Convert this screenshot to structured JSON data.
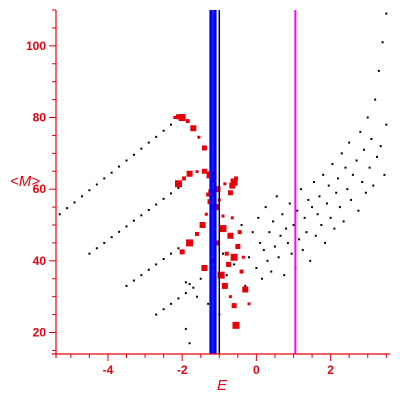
{
  "chart_data": {
    "type": "scatter",
    "xlabel": "E",
    "ylabel": "<M>",
    "xlim": [
      -5.4,
      3.6
    ],
    "ylim": [
      14,
      110
    ],
    "x_ticks": [
      -4,
      -2,
      0,
      2
    ],
    "y_ticks": [
      20,
      40,
      60,
      80,
      100
    ],
    "axis_color": "#e8000b",
    "series": [
      {
        "color": "#000000",
        "style": "dots",
        "points": [
          [
            -5.3,
            53
          ],
          [
            -5.1,
            54.7
          ],
          [
            -4.9,
            56.3
          ],
          [
            -4.7,
            58
          ],
          [
            -4.5,
            59.7
          ],
          [
            -4.3,
            61.3
          ],
          [
            -4.1,
            63
          ],
          [
            -3.9,
            64.6
          ],
          [
            -3.7,
            66.3
          ],
          [
            -3.5,
            68
          ],
          [
            -3.3,
            69.6
          ],
          [
            -3.1,
            71.3
          ],
          [
            -2.9,
            73
          ],
          [
            -2.7,
            74.6
          ],
          [
            -2.5,
            76.3
          ],
          [
            -2.3,
            78
          ],
          [
            -4.5,
            42
          ],
          [
            -4.3,
            43.5
          ],
          [
            -4.1,
            45
          ],
          [
            -3.9,
            46.6
          ],
          [
            -3.7,
            48.1
          ],
          [
            -3.5,
            49.6
          ],
          [
            -3.3,
            51.2
          ],
          [
            -3.1,
            52.7
          ],
          [
            -2.9,
            54.2
          ],
          [
            -2.7,
            55.7
          ],
          [
            -2.5,
            57.3
          ],
          [
            -2.3,
            58.8
          ],
          [
            -2.1,
            60.3
          ],
          [
            -3.5,
            33
          ],
          [
            -3.3,
            34.5
          ],
          [
            -3.1,
            36
          ],
          [
            -2.9,
            37.5
          ],
          [
            -2.7,
            39
          ],
          [
            -2.5,
            40.5
          ],
          [
            -2.3,
            42
          ],
          [
            -2.1,
            43.5
          ],
          [
            -2.7,
            25
          ],
          [
            -2.5,
            26.5
          ],
          [
            -2.3,
            28
          ],
          [
            -2.1,
            29.5
          ],
          [
            -1.9,
            31
          ],
          [
            -1.7,
            32.5
          ],
          [
            -1.9,
            34
          ],
          [
            -1.8,
            33.5
          ],
          [
            -1.6,
            30
          ],
          [
            -1.5,
            35
          ],
          [
            -1.3,
            28
          ],
          [
            -1.2,
            38
          ],
          [
            -1.0,
            25
          ],
          [
            -1.9,
            21
          ],
          [
            -1.8,
            17
          ],
          [
            -0.9,
            42
          ],
          [
            -0.8,
            36
          ],
          [
            -0.7,
            47
          ],
          [
            -0.6,
            39
          ],
          [
            -0.5,
            44
          ],
          [
            -0.4,
            50
          ],
          [
            -0.3,
            33
          ],
          [
            -0.2,
            41
          ],
          [
            -0.1,
            48
          ],
          [
            0.0,
            38
          ],
          [
            0.05,
            52
          ],
          [
            0.1,
            45
          ],
          [
            0.15,
            35
          ],
          [
            0.2,
            43
          ],
          [
            0.25,
            55
          ],
          [
            0.3,
            40
          ],
          [
            0.35,
            48
          ],
          [
            0.4,
            37
          ],
          [
            0.45,
            51
          ],
          [
            0.5,
            44
          ],
          [
            0.55,
            58
          ],
          [
            0.6,
            41
          ],
          [
            0.65,
            47
          ],
          [
            0.7,
            53
          ],
          [
            0.75,
            36
          ],
          [
            0.8,
            49
          ],
          [
            0.85,
            45
          ],
          [
            0.9,
            56
          ],
          [
            0.95,
            42
          ],
          [
            1.0,
            50
          ],
          [
            1.05,
            38
          ],
          [
            1.1,
            54
          ],
          [
            1.15,
            46
          ],
          [
            1.2,
            60
          ],
          [
            1.25,
            43
          ],
          [
            1.3,
            52
          ],
          [
            1.35,
            48
          ],
          [
            1.4,
            57
          ],
          [
            1.45,
            40
          ],
          [
            1.5,
            55
          ],
          [
            1.55,
            62
          ],
          [
            1.6,
            47
          ],
          [
            1.65,
            53
          ],
          [
            1.7,
            58
          ],
          [
            1.75,
            50
          ],
          [
            1.8,
            64
          ],
          [
            1.85,
            45
          ],
          [
            1.9,
            56
          ],
          [
            1.95,
            61
          ],
          [
            2.0,
            52
          ],
          [
            2.05,
            67
          ],
          [
            2.1,
            49
          ],
          [
            2.15,
            59
          ],
          [
            2.2,
            63
          ],
          [
            2.25,
            55
          ],
          [
            2.3,
            70
          ],
          [
            2.35,
            51
          ],
          [
            2.4,
            66
          ],
          [
            2.45,
            60
          ],
          [
            2.5,
            73
          ],
          [
            2.55,
            57
          ],
          [
            2.6,
            64
          ],
          [
            2.7,
            68
          ],
          [
            2.75,
            54
          ],
          [
            2.8,
            76
          ],
          [
            2.85,
            62
          ],
          [
            2.9,
            71
          ],
          [
            2.95,
            59
          ],
          [
            3.0,
            80
          ],
          [
            3.05,
            66
          ],
          [
            3.1,
            74
          ],
          [
            3.15,
            61
          ],
          [
            3.2,
            85
          ],
          [
            3.25,
            69
          ],
          [
            3.3,
            93
          ],
          [
            3.35,
            72
          ],
          [
            3.4,
            101
          ],
          [
            3.45,
            64
          ],
          [
            3.5,
            109
          ],
          [
            3.5,
            78
          ]
        ]
      },
      {
        "color": "#e8000b",
        "style": "markers",
        "points": [
          [
            -2.2,
            80
          ],
          [
            -2.1,
            80.2
          ],
          [
            -2.0,
            80
          ],
          [
            -1.85,
            79
          ],
          [
            -1.7,
            77
          ],
          [
            -1.55,
            74.5
          ],
          [
            -1.4,
            71.5
          ],
          [
            -2.1,
            61.5
          ],
          [
            -1.95,
            63
          ],
          [
            -1.8,
            64.3
          ],
          [
            -1.6,
            64.9
          ],
          [
            -1.4,
            65
          ],
          [
            -1.25,
            64
          ],
          [
            -1.15,
            62.5
          ],
          [
            -1.05,
            60
          ],
          [
            -1.0,
            57
          ],
          [
            -2.0,
            42.5
          ],
          [
            -1.8,
            45
          ],
          [
            -1.6,
            47.5
          ],
          [
            -1.45,
            50
          ],
          [
            -1.35,
            53
          ],
          [
            -1.25,
            56.5
          ],
          [
            -1.2,
            59
          ],
          [
            -1.3,
            58.5
          ],
          [
            -1.1,
            55
          ],
          [
            -0.9,
            52.5
          ],
          [
            -0.7,
            59
          ],
          [
            -0.6,
            62
          ],
          [
            -0.55,
            63
          ],
          [
            -0.65,
            61
          ],
          [
            -0.85,
            61.5
          ],
          [
            -1.05,
            45
          ],
          [
            -0.9,
            49
          ],
          [
            -0.8,
            42
          ],
          [
            -0.7,
            47
          ],
          [
            -0.65,
            52
          ],
          [
            -0.75,
            39
          ],
          [
            -0.95,
            36
          ],
          [
            -1.15,
            40
          ],
          [
            -0.85,
            33
          ],
          [
            -0.7,
            30
          ],
          [
            -0.6,
            27.5
          ],
          [
            -0.55,
            22
          ],
          [
            -0.4,
            37
          ],
          [
            -0.3,
            32
          ],
          [
            -0.2,
            28
          ],
          [
            -0.5,
            44
          ],
          [
            -0.6,
            41
          ],
          [
            -0.45,
            48
          ],
          [
            -1.4,
            38
          ],
          [
            -0.35,
            41
          ]
        ]
      }
    ],
    "reference_lines": [
      {
        "x": -1.22,
        "color": "#0000ff"
      },
      {
        "x": -1.12,
        "color": "#0000ff"
      },
      {
        "x": -1.0,
        "color": "#000000"
      },
      {
        "x": 1.05,
        "color": "#ff00ff"
      }
    ]
  }
}
